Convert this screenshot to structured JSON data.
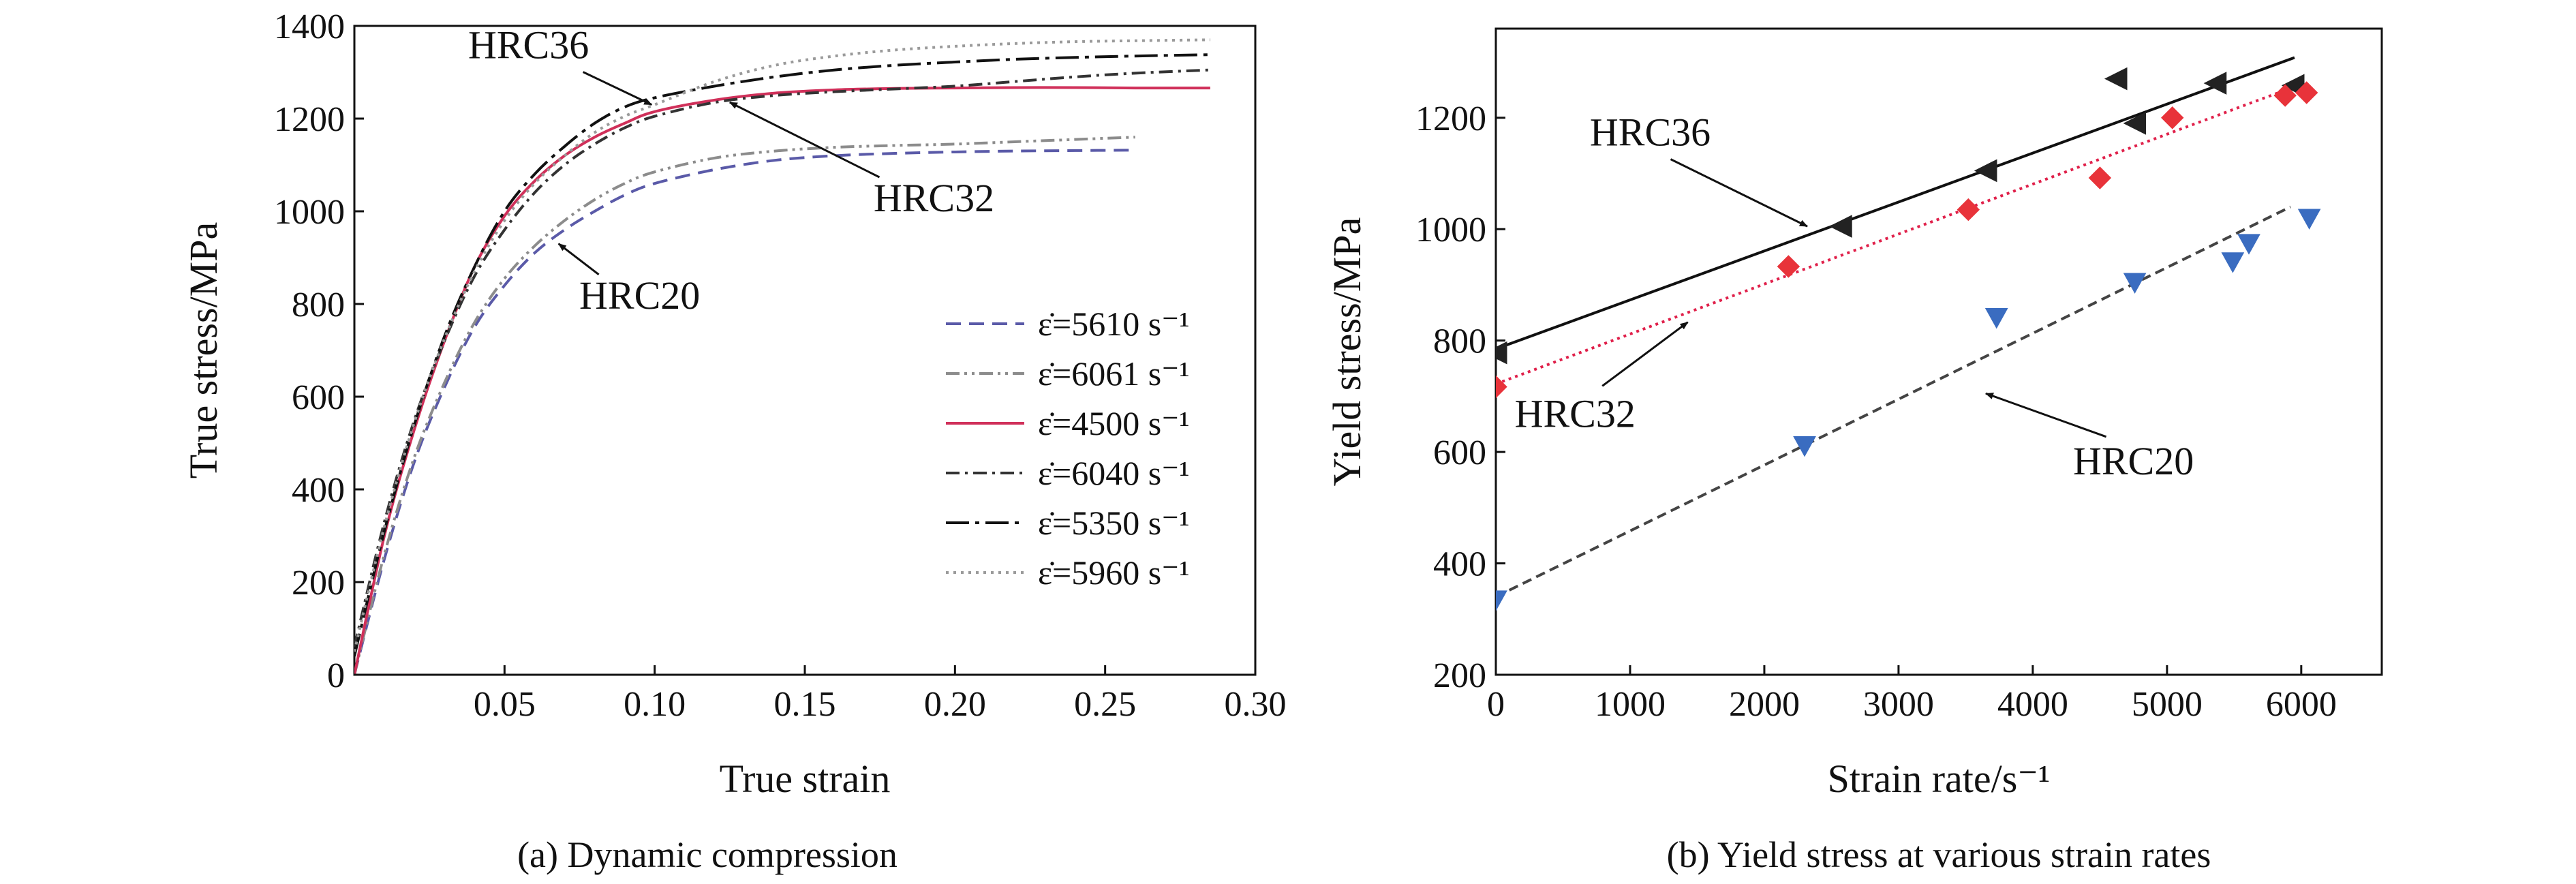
{
  "chart_data": [
    {
      "type": "line",
      "caption": "(a) Dynamic compression",
      "xlabel": "True strain",
      "ylabel": "True stress/MPa",
      "xlim": [
        0,
        0.3
      ],
      "ylim": [
        0,
        1400
      ],
      "xticks": [
        0.05,
        0.1,
        0.15,
        0.2,
        0.25,
        0.3
      ],
      "xtick_labels": [
        "0.05",
        "0.10",
        "0.15",
        "0.20",
        "0.25",
        "0.30"
      ],
      "yticks": [
        0,
        200,
        400,
        600,
        800,
        1000,
        1200,
        1400
      ],
      "ytick_labels": [
        "0",
        "200",
        "400",
        "600",
        "800",
        "1000",
        "1200",
        "1400"
      ],
      "legend_position": "lower-right",
      "series": [
        {
          "name": "ε̇=5610 s⁻¹",
          "rate": "5610",
          "color": "#5a5aa8",
          "style": "dash",
          "x": [
            0,
            0.01,
            0.02,
            0.03,
            0.04,
            0.05,
            0.06,
            0.07,
            0.08,
            0.09,
            0.1,
            0.12,
            0.14,
            0.16,
            0.18,
            0.2,
            0.22,
            0.24,
            0.26
          ],
          "y": [
            0,
            250,
            460,
            620,
            750,
            840,
            910,
            960,
            1000,
            1035,
            1060,
            1090,
            1110,
            1120,
            1125,
            1128,
            1130,
            1131,
            1132
          ]
        },
        {
          "name": "ε̇=6061 s⁻¹",
          "rate": "6061",
          "color": "#8c8c8c",
          "style": "dashdotdot",
          "x": [
            0,
            0.01,
            0.02,
            0.03,
            0.04,
            0.05,
            0.06,
            0.07,
            0.08,
            0.09,
            0.1,
            0.12,
            0.14,
            0.16,
            0.18,
            0.2,
            0.22,
            0.24,
            0.26
          ],
          "y": [
            0,
            260,
            470,
            630,
            760,
            855,
            925,
            980,
            1025,
            1060,
            1085,
            1115,
            1130,
            1138,
            1142,
            1145,
            1150,
            1155,
            1160
          ]
        },
        {
          "name": "ε̇=4500 s⁻¹",
          "rate": "4500",
          "color": "#d0305a",
          "style": "solid",
          "x": [
            0,
            0.01,
            0.02,
            0.03,
            0.04,
            0.05,
            0.06,
            0.07,
            0.08,
            0.09,
            0.1,
            0.12,
            0.14,
            0.16,
            0.18,
            0.2,
            0.22,
            0.24,
            0.26,
            0.285
          ],
          "y": [
            0,
            300,
            530,
            720,
            880,
            990,
            1065,
            1120,
            1160,
            1190,
            1215,
            1240,
            1255,
            1262,
            1265,
            1266,
            1267,
            1267,
            1266,
            1266
          ]
        },
        {
          "name": "ε̇=6040 s⁻¹",
          "rate": "6040",
          "color": "#333333",
          "style": "dashdot",
          "x": [
            0,
            0.01,
            0.02,
            0.03,
            0.04,
            0.05,
            0.06,
            0.07,
            0.08,
            0.09,
            0.1,
            0.12,
            0.14,
            0.16,
            0.18,
            0.2,
            0.22,
            0.24,
            0.26,
            0.285
          ],
          "y": [
            60,
            330,
            550,
            720,
            860,
            960,
            1040,
            1100,
            1145,
            1180,
            1205,
            1235,
            1250,
            1258,
            1264,
            1270,
            1280,
            1290,
            1298,
            1305
          ]
        },
        {
          "name": "ε̇=5350 s⁻¹",
          "rate": "5350",
          "color": "#111111",
          "style": "longdashdot",
          "x": [
            0,
            0.01,
            0.02,
            0.03,
            0.04,
            0.05,
            0.06,
            0.07,
            0.08,
            0.09,
            0.1,
            0.12,
            0.14,
            0.16,
            0.18,
            0.2,
            0.22,
            0.24,
            0.26,
            0.285
          ],
          "y": [
            40,
            310,
            540,
            730,
            880,
            1000,
            1080,
            1140,
            1190,
            1225,
            1245,
            1270,
            1290,
            1305,
            1315,
            1322,
            1328,
            1332,
            1335,
            1338
          ]
        },
        {
          "name": "ε̇=5960 s⁻¹",
          "rate": "5960",
          "color": "#9a9a9a",
          "style": "dot",
          "x": [
            0,
            0.01,
            0.02,
            0.03,
            0.04,
            0.05,
            0.06,
            0.07,
            0.08,
            0.09,
            0.1,
            0.12,
            0.14,
            0.16,
            0.18,
            0.2,
            0.22,
            0.24,
            0.26,
            0.285
          ],
          "y": [
            50,
            320,
            545,
            725,
            870,
            980,
            1060,
            1120,
            1170,
            1205,
            1230,
            1280,
            1315,
            1335,
            1348,
            1356,
            1362,
            1366,
            1368,
            1370
          ]
        }
      ],
      "annotations": [
        {
          "text": "HRC36",
          "x": 0.058,
          "y": 1330,
          "arrow_to_x": 0.099,
          "arrow_to_y": 1230
        },
        {
          "text": "HRC32",
          "x": 0.193,
          "y": 1000,
          "arrow_to_x": 0.125,
          "arrow_to_y": 1235
        },
        {
          "text": "HRC20",
          "x": 0.095,
          "y": 790,
          "arrow_to_x": 0.068,
          "arrow_to_y": 930
        }
      ]
    },
    {
      "type": "scatter",
      "caption": "(b) Yield stress at various strain rates",
      "xlabel": "Strain rate/s⁻¹",
      "ylabel": "Yield stress/MPa",
      "xlim": [
        0,
        6600
      ],
      "ylim": [
        200,
        1360
      ],
      "xticks": [
        0,
        1000,
        2000,
        3000,
        4000,
        5000,
        6000
      ],
      "xtick_labels": [
        "0",
        "1000",
        "2000",
        "3000",
        "4000",
        "5000",
        "6000"
      ],
      "yticks": [
        200,
        400,
        600,
        800,
        1000,
        1200
      ],
      "ytick_labels": [
        "200",
        "400",
        "600",
        "800",
        "1000",
        "1200"
      ],
      "series": [
        {
          "label": "HRC36",
          "marker": "triangle-left",
          "color": "#222222",
          "fit_style": "solid",
          "fit_color": "#111111",
          "x": [
            0,
            2570,
            3650,
            4760,
            4620,
            5360,
            5940
          ],
          "y": [
            778,
            1005,
            1105,
            1190,
            1270,
            1262,
            1258
          ],
          "fit": [
            [
              0,
              785
            ],
            [
              5950,
              1308
            ]
          ]
        },
        {
          "label": "HRC32",
          "marker": "diamond",
          "color": "#e8333a",
          "fit_style": "dot",
          "fit_color": "#e0204a",
          "x": [
            0,
            2180,
            3520,
            4500,
            5040,
            5880,
            6040
          ],
          "y": [
            717,
            933,
            1035,
            1092,
            1200,
            1240,
            1245
          ],
          "fit": [
            [
              0,
              722
            ],
            [
              6020,
              1262
            ]
          ]
        },
        {
          "label": "HRC20",
          "marker": "triangle-down",
          "color": "#3a6cc0",
          "fit_style": "dash",
          "fit_color": "#444444",
          "x": [
            0,
            2300,
            3730,
            4760,
            5490,
            5610,
            6060
          ],
          "y": [
            335,
            612,
            842,
            905,
            942,
            975,
            1020
          ],
          "fit": [
            [
              0,
              340
            ],
            [
              5920,
              1040
            ]
          ]
        }
      ],
      "annotations": [
        {
          "text": "HRC36",
          "x": 1150,
          "y": 1150,
          "arrow_to_x": 2320,
          "arrow_to_y": 1005
        },
        {
          "text": "HRC32",
          "x": 590,
          "y": 645,
          "arrow_to_x": 1430,
          "arrow_to_y": 833
        },
        {
          "text": "HRC20",
          "x": 4750,
          "y": 560,
          "arrow_to_x": 3650,
          "arrow_to_y": 705
        }
      ]
    }
  ]
}
